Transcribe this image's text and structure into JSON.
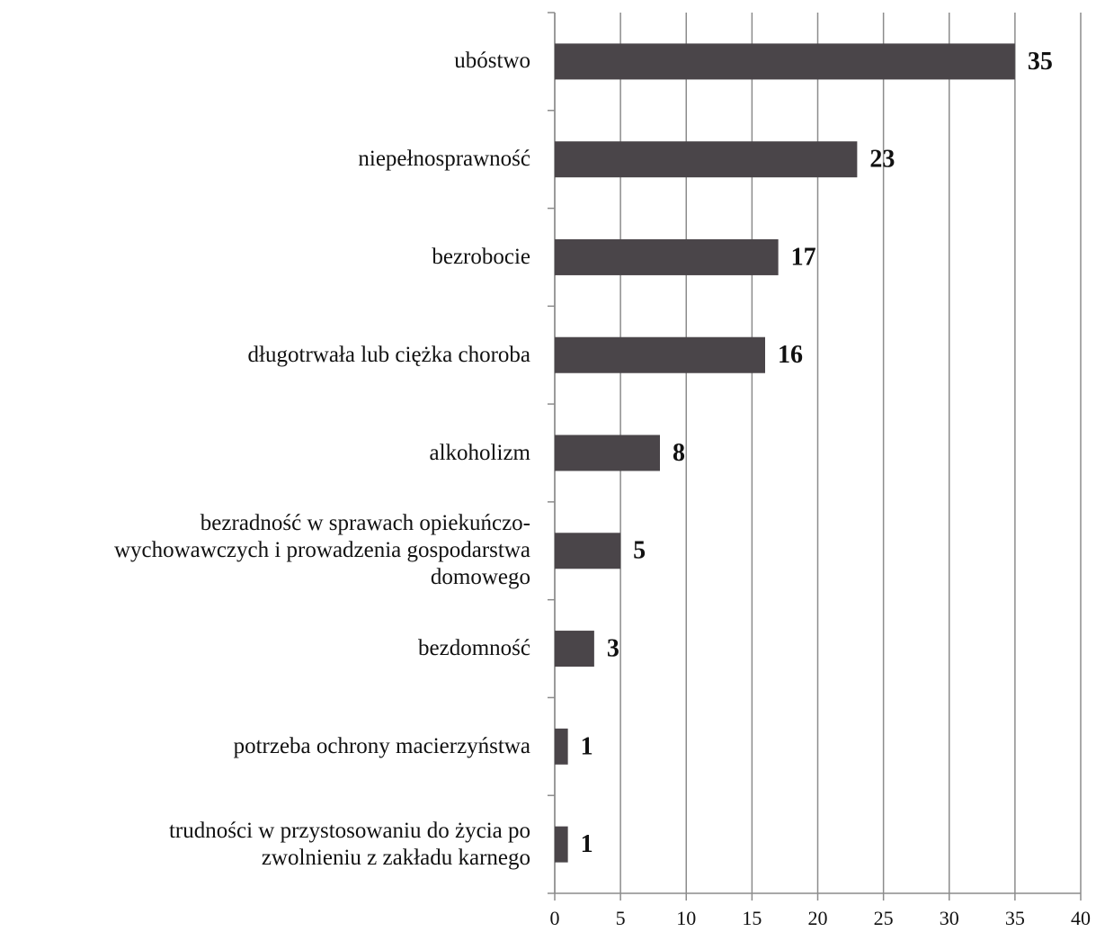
{
  "chart_data": {
    "type": "bar",
    "orientation": "horizontal",
    "categories": [
      "ubóstwo",
      "niepełnosprawność",
      "bezrobocie",
      "długotrwała lub ciężka choroba",
      "alkoholizm",
      "bezradność w sprawach opiekuńczo-\nwychowawczych i prowadzenia gospodarstwa\ndomowego",
      "bezdomność",
      "potrzeba ochrony macierzyństwa",
      "trudności w przystosowaniu do życia po\nzwolnieniu z zakładu karnego"
    ],
    "values": [
      35,
      23,
      17,
      16,
      8,
      5,
      3,
      1,
      1
    ],
    "color": "#4a4549",
    "xlim": [
      0,
      40
    ],
    "xticks": [
      0,
      5,
      10,
      15,
      20,
      25,
      30,
      35,
      40
    ],
    "grid": true
  }
}
